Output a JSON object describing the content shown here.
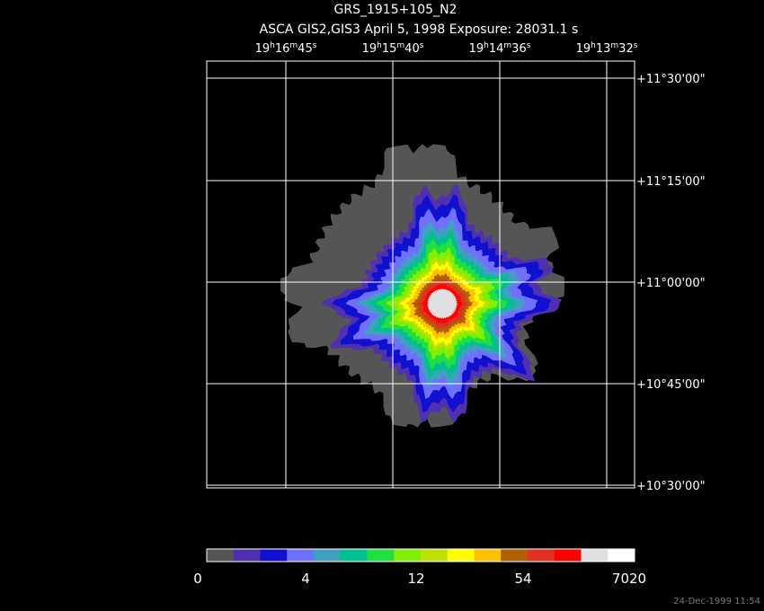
{
  "header": {
    "title": "GRS_1915+105_N2",
    "subtitle": "ASCA GIS2,GIS3 April 5, 1998 Exposure: 28031.1 s"
  },
  "ra_labels": [
    [
      "19",
      "h",
      "16",
      "m",
      "45",
      "s"
    ],
    [
      "19",
      "h",
      "15",
      "m",
      "40",
      "s"
    ],
    [
      "19",
      "h",
      "14",
      "m",
      "36",
      "s"
    ],
    [
      "19",
      "h",
      "13",
      "m",
      "32",
      "s"
    ]
  ],
  "dec_labels": [
    "+11°30'00\"",
    "+11°15'00\"",
    "+11°00'00\"",
    "+10°45'00\"",
    "+10°30'00\""
  ],
  "colorbar": {
    "colors": [
      "#555555",
      "#5030b0",
      "#1010d0",
      "#7070ff",
      "#40a0c0",
      "#00c090",
      "#20e040",
      "#80f000",
      "#c0e000",
      "#ffff00",
      "#ffc000",
      "#b06000",
      "#e03020",
      "#ff0000",
      "#e0e0e0",
      "#ffffff"
    ],
    "labels": [
      "0",
      "4",
      "12",
      "54",
      "7020"
    ]
  },
  "timestamp": "24-Dec-1999 11:54"
}
